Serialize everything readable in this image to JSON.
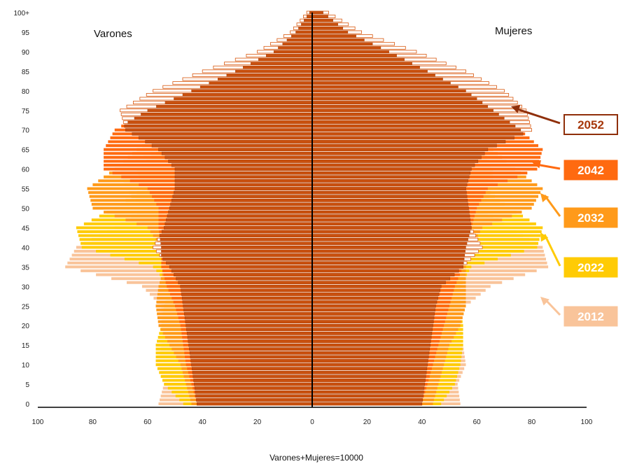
{
  "chart_data": {
    "type": "bar",
    "subtype": "population-pyramid",
    "title": "",
    "left_label": "Varones",
    "right_label": "Mujeres",
    "xlabel": "",
    "footnote": "Varones+Mujeres=10000",
    "xlim": [
      -100,
      100
    ],
    "x_tick_labels": [
      "100",
      "80",
      "60",
      "40",
      "20",
      "0",
      "20",
      "40",
      "60",
      "80",
      "100"
    ],
    "x_tick_values": [
      -100,
      -80,
      -60,
      -40,
      -20,
      0,
      20,
      40,
      60,
      80,
      100
    ],
    "y_tick_labels": [
      "0",
      "5",
      "10",
      "15",
      "20",
      "25",
      "30",
      "35",
      "40",
      "45",
      "50",
      "55",
      "60",
      "65",
      "70",
      "75",
      "80",
      "85",
      "90",
      "95",
      "100+"
    ],
    "y_tick_values": [
      0,
      5,
      10,
      15,
      20,
      25,
      30,
      35,
      40,
      45,
      50,
      55,
      60,
      65,
      70,
      75,
      80,
      85,
      90,
      95,
      100
    ],
    "ages": [
      0,
      5,
      10,
      15,
      20,
      25,
      30,
      35,
      40,
      45,
      50,
      55,
      60,
      65,
      70,
      75,
      80,
      85,
      90,
      95,
      100
    ],
    "series": [
      {
        "name": "2012",
        "color": "#f9c49a",
        "style": "filled",
        "varones": [
          56,
          54,
          56,
          55,
          55,
          55,
          62,
          90,
          86,
          72,
          62,
          68,
          70,
          56,
          45,
          38,
          28,
          18,
          9,
          4,
          1
        ],
        "mujeres": [
          54,
          53,
          56,
          55,
          54,
          56,
          65,
          86,
          84,
          72,
          62,
          66,
          66,
          60,
          55,
          50,
          44,
          32,
          20,
          9,
          3
        ]
      },
      {
        "name": "2022",
        "color": "#ffcb05",
        "style": "filled",
        "varones": [
          47,
          54,
          57,
          57,
          55,
          54,
          52,
          58,
          84,
          86,
          72,
          62,
          64,
          55,
          44,
          38,
          30,
          20,
          10,
          4,
          1
        ],
        "mujeres": [
          47,
          52,
          54,
          55,
          55,
          54,
          54,
          58,
          82,
          84,
          72,
          63,
          66,
          62,
          56,
          50,
          44,
          34,
          22,
          10,
          3
        ]
      },
      {
        "name": "2032",
        "color": "#ff9a1a",
        "style": "filled",
        "varones": [
          44,
          46,
          48,
          52,
          56,
          57,
          56,
          54,
          55,
          60,
          80,
          82,
          72,
          64,
          54,
          44,
          35,
          24,
          12,
          5,
          1
        ],
        "mujeres": [
          44,
          46,
          48,
          50,
          54,
          56,
          56,
          56,
          58,
          62,
          80,
          84,
          74,
          66,
          58,
          52,
          46,
          36,
          24,
          11,
          3
        ]
      },
      {
        "name": "2042",
        "color": "#ff6a10",
        "style": "filled",
        "varones": [
          42,
          44,
          46,
          47,
          48,
          50,
          53,
          55,
          55,
          56,
          56,
          60,
          76,
          76,
          72,
          60,
          44,
          28,
          14,
          6,
          1
        ],
        "mujeres": [
          40,
          42,
          44,
          46,
          48,
          50,
          52,
          55,
          56,
          58,
          60,
          64,
          82,
          84,
          76,
          66,
          56,
          42,
          28,
          13,
          4
        ]
      },
      {
        "name": "2052",
        "color": "#d8570d",
        "style": "outline",
        "varones": [
          42,
          43,
          44,
          45,
          46,
          47,
          48,
          52,
          58,
          54,
          52,
          50,
          50,
          56,
          68,
          70,
          58,
          40,
          20,
          8,
          2
        ],
        "mujeres": [
          40,
          41,
          42,
          43,
          44,
          45,
          47,
          55,
          62,
          58,
          57,
          56,
          58,
          64,
          80,
          78,
          70,
          56,
          38,
          18,
          6
        ]
      }
    ],
    "grid": false,
    "legend": "right, year labels with arrows pointing to each profile",
    "legend_order": [
      "2052",
      "2042",
      "2032",
      "2022",
      "2012"
    ]
  }
}
